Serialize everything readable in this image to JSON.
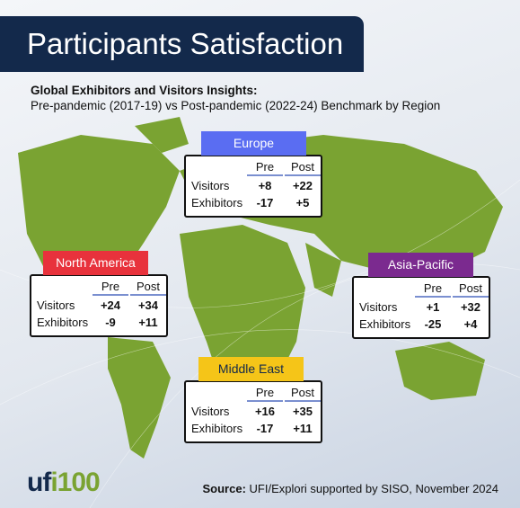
{
  "header": {
    "title": "Participants Satisfaction",
    "subtitle_bold": "Global Exhibitors and Visitors Insights:",
    "subtitle": "Pre-pandemic (2017-19) vs Post-pandemic (2022-24) Benchmark by Region"
  },
  "regions": [
    {
      "name": "Europe",
      "color": "#5a6df2",
      "text_color": "#ffffff",
      "columns": [
        "Pre",
        "Post"
      ],
      "rows": [
        {
          "label": "Visitors",
          "pre": "+8",
          "post": "+22"
        },
        {
          "label": "Exhibitors",
          "pre": "-17",
          "post": "+5"
        }
      ]
    },
    {
      "name": "North America",
      "color": "#e8323c",
      "text_color": "#ffffff",
      "columns": [
        "Pre",
        "Post"
      ],
      "rows": [
        {
          "label": "Visitors",
          "pre": "+24",
          "post": "+34"
        },
        {
          "label": "Exhibitors",
          "pre": "-9",
          "post": "+11"
        }
      ]
    },
    {
      "name": "Asia-Pacific",
      "color": "#7b2a8f",
      "text_color": "#ffffff",
      "columns": [
        "Pre",
        "Post"
      ],
      "rows": [
        {
          "label": "Visitors",
          "pre": "+1",
          "post": "+32"
        },
        {
          "label": "Exhibitors",
          "pre": "-25",
          "post": "+4"
        }
      ]
    },
    {
      "name": "Middle East",
      "color": "#f5c518",
      "text_color": "#13294b",
      "columns": [
        "Pre",
        "Post"
      ],
      "rows": [
        {
          "label": "Visitors",
          "pre": "+16",
          "post": "+35"
        },
        {
          "label": "Exhibitors",
          "pre": "-17",
          "post": "+11"
        }
      ]
    }
  ],
  "footer": {
    "logo_main": "uf",
    "logo_accent": "i100",
    "source_label": "Source:",
    "source": "UFI/Explori supported by SISO, November 2024"
  }
}
